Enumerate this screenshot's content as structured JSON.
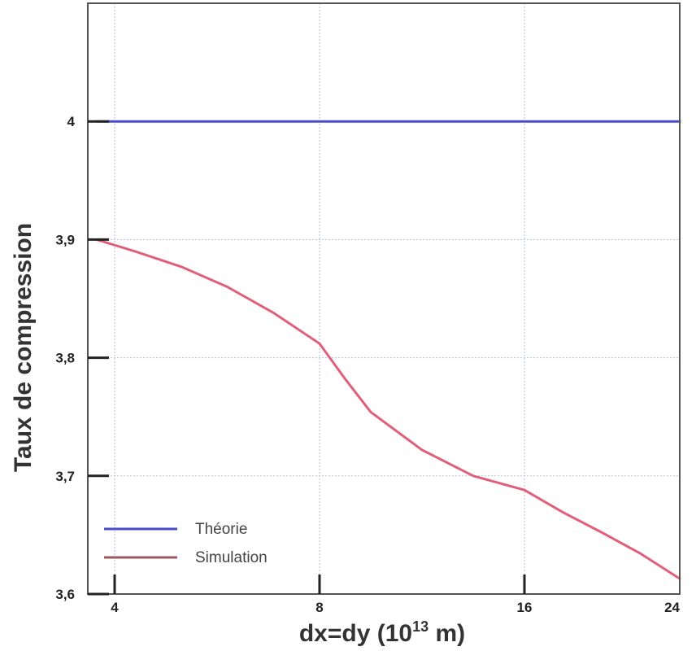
{
  "chart_data": {
    "type": "line",
    "ylabel": "Taux de compression",
    "xlabel": {
      "base": "dx=dy (10",
      "sup": "13",
      "tail": " m)"
    },
    "x_ticks": [
      "4",
      "8",
      "16",
      "24"
    ],
    "y_ticks": [
      "3,6",
      "3,7",
      "3,8",
      "3,9",
      "4"
    ],
    "ylim": [
      3.6,
      4.1
    ],
    "grid": true,
    "legend_position": "bottom-left",
    "series": [
      {
        "name": "Théorie",
        "color": "#4b4bc8",
        "points": [
          [
            3.65,
            4.0
          ],
          [
            24,
            4.0
          ]
        ]
      },
      {
        "name": "Simulation",
        "color": "#e0607a",
        "points": [
          [
            3.65,
            3.9
          ],
          [
            4.4,
            3.89
          ],
          [
            5.3,
            3.877
          ],
          [
            6.2,
            3.86
          ],
          [
            7.1,
            3.838
          ],
          [
            8,
            3.812
          ],
          [
            9,
            3.782
          ],
          [
            10,
            3.754
          ],
          [
            12,
            3.722
          ],
          [
            14,
            3.7
          ],
          [
            16,
            3.688
          ],
          [
            18,
            3.669
          ],
          [
            20,
            3.652
          ],
          [
            22,
            3.634
          ],
          [
            24,
            3.613
          ]
        ]
      }
    ]
  }
}
